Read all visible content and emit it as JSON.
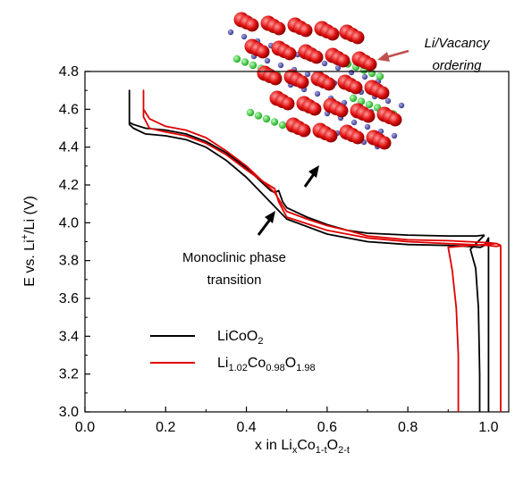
{
  "chart_data": {
    "type": "line",
    "xlabel": {
      "base": "x in Li",
      "sub1": "x",
      "mid1": "Co",
      "sub2": "1-t",
      "mid2": "O",
      "sub3": "2-t"
    },
    "ylabel": {
      "pre": "E vs. Li",
      "sup": "+",
      "post": "/Li (V)"
    },
    "xlim": [
      0.0,
      1.05
    ],
    "ylim": [
      3.0,
      4.8
    ],
    "xticks": [
      "0.0",
      "0.2",
      "0.4",
      "0.6",
      "0.8",
      "1.0"
    ],
    "yticks": [
      "3.0",
      "3.2",
      "3.4",
      "3.6",
      "3.8",
      "4.0",
      "4.2",
      "4.4",
      "4.6",
      "4.8"
    ],
    "grid": false,
    "legend_position": "lower-left",
    "series": [
      {
        "name": "LiCoO2",
        "legend": {
          "parts": [
            {
              "t": "LiCoO",
              "s": null
            },
            {
              "t": "2",
              "s": "sub"
            }
          ]
        },
        "color": "#000000",
        "charge": [
          [
            0.11,
            4.53
          ],
          [
            0.12,
            4.52
          ],
          [
            0.15,
            4.5
          ],
          [
            0.2,
            4.49
          ],
          [
            0.25,
            4.47
          ],
          [
            0.3,
            4.43
          ],
          [
            0.35,
            4.37
          ],
          [
            0.4,
            4.29
          ],
          [
            0.43,
            4.23
          ],
          [
            0.46,
            4.17
          ],
          [
            0.47,
            4.16
          ],
          [
            0.48,
            4.17
          ],
          [
            0.49,
            4.11
          ],
          [
            0.5,
            4.08
          ],
          [
            0.55,
            4.03
          ],
          [
            0.6,
            3.99
          ],
          [
            0.65,
            3.96
          ],
          [
            0.7,
            3.945
          ],
          [
            0.8,
            3.935
          ],
          [
            0.9,
            3.93
          ],
          [
            0.97,
            3.93
          ],
          [
            0.99,
            3.935
          ]
        ],
        "discharge": [
          [
            1.0,
            3.0
          ],
          [
            1.0,
            3.92
          ],
          [
            0.99,
            3.88
          ],
          [
            0.98,
            3.87
          ],
          [
            0.95,
            3.875
          ],
          [
            0.9,
            3.88
          ],
          [
            0.8,
            3.885
          ],
          [
            0.7,
            3.9
          ],
          [
            0.6,
            3.94
          ],
          [
            0.5,
            4.02
          ],
          [
            0.45,
            4.13
          ],
          [
            0.4,
            4.24
          ],
          [
            0.35,
            4.33
          ],
          [
            0.3,
            4.4
          ],
          [
            0.25,
            4.44
          ],
          [
            0.2,
            4.46
          ],
          [
            0.15,
            4.47
          ],
          [
            0.12,
            4.5
          ],
          [
            0.11,
            4.52
          ],
          [
            0.11,
            4.7
          ],
          [
            0.11,
            4.52
          ]
        ],
        "tail": [
          [
            0.99,
            3.935
          ],
          [
            0.955,
            3.86
          ],
          [
            0.968,
            3.76
          ],
          [
            0.975,
            3.55
          ],
          [
            0.978,
            3.2
          ],
          [
            0.978,
            3.0
          ]
        ]
      },
      {
        "name": "Li1.02Co0.98O1.98",
        "legend": {
          "parts": [
            {
              "t": "Li",
              "s": null
            },
            {
              "t": "1.02",
              "s": "sub"
            },
            {
              "t": "Co",
              "s": null
            },
            {
              "t": "0.98",
              "s": "sub"
            },
            {
              "t": "O",
              "s": null
            },
            {
              "t": "1.98",
              "s": "sub"
            }
          ]
        },
        "color": "#e00000",
        "charge": [
          [
            0.145,
            4.6
          ],
          [
            0.16,
            4.55
          ],
          [
            0.2,
            4.51
          ],
          [
            0.25,
            4.49
          ],
          [
            0.3,
            4.45
          ],
          [
            0.35,
            4.38
          ],
          [
            0.4,
            4.3
          ],
          [
            0.44,
            4.22
          ],
          [
            0.47,
            4.16
          ],
          [
            0.49,
            4.09
          ],
          [
            0.5,
            4.06
          ],
          [
            0.55,
            4.02
          ],
          [
            0.6,
            3.985
          ],
          [
            0.65,
            3.96
          ],
          [
            0.7,
            3.93
          ],
          [
            0.8,
            3.91
          ],
          [
            0.9,
            3.905
          ],
          [
            1.0,
            3.895
          ],
          [
            1.02,
            3.89
          ],
          [
            1.03,
            3.88
          ]
        ],
        "discharge": [
          [
            1.03,
            3.0
          ],
          [
            1.03,
            3.88
          ],
          [
            1.02,
            3.875
          ],
          [
            1.0,
            3.88
          ],
          [
            0.9,
            3.89
          ],
          [
            0.8,
            3.9
          ],
          [
            0.7,
            3.92
          ],
          [
            0.6,
            3.96
          ],
          [
            0.5,
            4.03
          ],
          [
            0.48,
            4.11
          ],
          [
            0.47,
            4.18
          ],
          [
            0.44,
            4.22
          ],
          [
            0.4,
            4.28
          ],
          [
            0.35,
            4.36
          ],
          [
            0.3,
            4.42
          ],
          [
            0.25,
            4.46
          ],
          [
            0.2,
            4.48
          ],
          [
            0.16,
            4.5
          ],
          [
            0.145,
            4.56
          ],
          [
            0.145,
            4.7
          ],
          [
            0.145,
            4.6
          ]
        ],
        "tail": [
          [
            1.02,
            3.89
          ],
          [
            0.9,
            3.87
          ],
          [
            0.91,
            3.75
          ],
          [
            0.92,
            3.55
          ],
          [
            0.925,
            3.3
          ],
          [
            0.925,
            3.0
          ]
        ]
      }
    ],
    "annotations": {
      "phase": [
        "Monoclinic phase",
        "transition"
      ],
      "ordering": [
        "Li/Vacancy",
        "ordering"
      ]
    }
  },
  "colors": {
    "axis": "#000000",
    "arrow_dark": "#000000",
    "arrow_ordering": "#c0504d",
    "atom_red": "#e01010",
    "atom_blue": "#4a4a9a",
    "atom_green": "#33cc33"
  }
}
